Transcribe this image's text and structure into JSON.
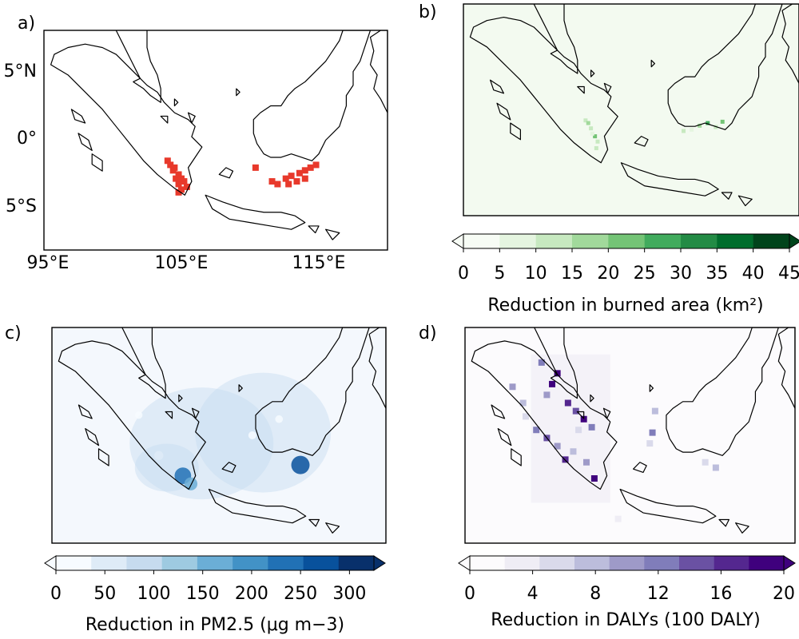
{
  "figure": {
    "panels": [
      {
        "label": "a)"
      },
      {
        "label": "b)"
      },
      {
        "label": "c)"
      },
      {
        "label": "d)"
      }
    ]
  },
  "chart_data": [
    {
      "type": "heatmap",
      "panel": "a)",
      "title": "",
      "x_ticks": [
        "95°E",
        "105°E",
        "115°E"
      ],
      "y_ticks": [
        "5°N",
        "0°",
        "5°S"
      ],
      "x_range": [
        95,
        120
      ],
      "y_range": [
        -8,
        8
      ],
      "grid": false,
      "colors": {
        "land": "#ffffff",
        "coast": "#000000",
        "marker": "#e8392b"
      },
      "series": [
        {
          "type": "markers",
          "values": [
            [
              104.0,
              -1.5
            ],
            [
              104.2,
              -1.8
            ],
            [
              104.4,
              -2.2
            ],
            [
              104.6,
              -2.8
            ],
            [
              104.8,
              -3.2
            ],
            [
              105.0,
              -3.6
            ],
            [
              105.2,
              -3.0
            ],
            [
              105.4,
              -3.4
            ],
            [
              104.8,
              -2.5
            ],
            [
              104.5,
              -2.0
            ],
            [
              105.0,
              -2.8
            ],
            [
              104.8,
              -3.8
            ],
            [
              110.4,
              -2.0
            ],
            [
              111.6,
              -3.0
            ],
            [
              112.0,
              -3.2
            ],
            [
              112.6,
              -2.8
            ],
            [
              113.0,
              -2.6
            ],
            [
              113.6,
              -2.4
            ],
            [
              114.0,
              -2.2
            ],
            [
              114.4,
              -2.0
            ],
            [
              114.0,
              -2.8
            ],
            [
              113.4,
              -3.0
            ],
            [
              112.8,
              -3.2
            ],
            [
              114.8,
              -1.8
            ]
          ]
        }
      ]
    },
    {
      "type": "heatmap",
      "panel": "b)",
      "colorbar_label": "Reduction in burned area (km²)",
      "colorbar_ticks": [
        "0",
        "5",
        "10",
        "15",
        "20",
        "25",
        "30",
        "35",
        "40",
        "45"
      ],
      "range": [
        0,
        45
      ],
      "colorbar_extend": "both",
      "colors": {
        "background": "#f3faf0",
        "scale": [
          "#f7fcf5",
          "#e5f5e0",
          "#c7e9c0",
          "#a1d99b",
          "#74c476",
          "#41ab5d",
          "#238b45",
          "#006d2c",
          "#00441b"
        ]
      },
      "series": [
        {
          "name": "",
          "values": [
            [
              104.1,
              -0.8,
              12
            ],
            [
              104.3,
              -1.0,
              18
            ],
            [
              104.5,
              -1.4,
              10
            ],
            [
              104.8,
              -2.0,
              22
            ],
            [
              105.0,
              -2.4,
              14
            ],
            [
              104.6,
              -1.8,
              9
            ],
            [
              104.9,
              -2.9,
              11
            ],
            [
              112.6,
              -1.2,
              18
            ],
            [
              113.2,
              -1.0,
              25
            ],
            [
              113.8,
              -1.3,
              12
            ],
            [
              114.3,
              -0.9,
              20
            ],
            [
              112.0,
              -1.5,
              8
            ],
            [
              111.4,
              -1.6,
              10
            ]
          ]
        }
      ]
    },
    {
      "type": "heatmap",
      "panel": "c)",
      "colorbar_label": "Reduction in PM2.5 (μg m−3)",
      "colorbar_ticks": [
        "0",
        "50",
        "100",
        "150",
        "200",
        "250",
        "300"
      ],
      "range": [
        0,
        325
      ],
      "colorbar_extend": "both",
      "colors": {
        "background": "#f4f8fd",
        "scale": [
          "#f7fbff",
          "#deebf7",
          "#c6dbef",
          "#9ecae1",
          "#6baed6",
          "#4292c6",
          "#2171b5",
          "#08519c",
          "#08306b"
        ]
      },
      "series": [
        {
          "name": "",
          "values": [
            [
              104.8,
              -3.0,
              230
            ],
            [
              105.4,
              -3.6,
              150
            ],
            [
              113.6,
              -2.2,
              270
            ],
            [
              103.0,
              -1.5,
              60
            ],
            [
              110.0,
              0.0,
              35
            ],
            [
              112.0,
              1.2,
              30
            ],
            [
              101.5,
              1.5,
              25
            ]
          ]
        }
      ]
    },
    {
      "type": "heatmap",
      "panel": "d)",
      "colorbar_label": "Reduction in DALYs (100 DALY)",
      "colorbar_ticks": [
        "0",
        "4",
        "8",
        "12",
        "16",
        "20"
      ],
      "range": [
        0,
        20
      ],
      "colorbar_extend": "both",
      "colors": {
        "background": "#fcfbfd",
        "scale": [
          "#fcfbfd",
          "#efedf5",
          "#dadaeb",
          "#bcbddc",
          "#9e9ac8",
          "#807dba",
          "#6a51a3",
          "#54278f",
          "#3f007d"
        ]
      },
      "series": [
        {
          "name": "",
          "values": [
            [
              100.8,
              5.4,
              12
            ],
            [
              102.0,
              4.6,
              18
            ],
            [
              101.6,
              3.8,
              20
            ],
            [
              101.2,
              3.0,
              10
            ],
            [
              102.8,
              2.4,
              16
            ],
            [
              103.4,
              1.8,
              14
            ],
            [
              104.0,
              1.2,
              18
            ],
            [
              104.6,
              0.6,
              12
            ],
            [
              103.2,
              -1.2,
              8
            ],
            [
              104.2,
              -2.0,
              10
            ],
            [
              104.8,
              -3.2,
              20
            ],
            [
              98.6,
              3.6,
              10
            ],
            [
              99.4,
              2.4,
              8
            ],
            [
              99.6,
              1.4,
              6
            ],
            [
              100.4,
              0.4,
              12
            ],
            [
              101.2,
              -0.2,
              14
            ],
            [
              102.0,
              -0.8,
              10
            ],
            [
              102.6,
              -1.8,
              16
            ],
            [
              103.6,
              0.4,
              6
            ],
            [
              109.4,
              1.8,
              8
            ],
            [
              109.2,
              0.2,
              12
            ],
            [
              109.0,
              -0.6,
              6
            ],
            [
              113.2,
              -2.0,
              6
            ],
            [
              114.0,
              -2.4,
              8
            ],
            [
              106.6,
              -6.2,
              4
            ]
          ]
        }
      ]
    }
  ]
}
